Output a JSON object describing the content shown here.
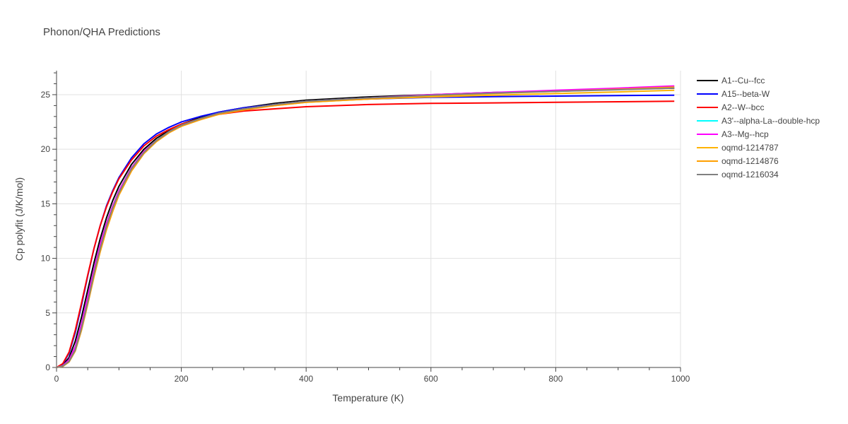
{
  "chart_data": {
    "type": "line",
    "title": "Phonon/QHA Predictions",
    "xlabel": "Temperature (K)",
    "ylabel": "Cp polyfit (J/K/mol)",
    "xlim": [
      0,
      1000
    ],
    "ylim": [
      0,
      27.2
    ],
    "xticks": [
      0,
      200,
      400,
      600,
      800,
      1000
    ],
    "yticks": [
      0,
      5,
      10,
      15,
      20,
      25
    ],
    "grid": true,
    "legend_position": "right",
    "x": [
      0,
      10,
      20,
      30,
      40,
      50,
      60,
      70,
      80,
      90,
      100,
      120,
      140,
      160,
      180,
      200,
      230,
      260,
      300,
      350,
      400,
      500,
      600,
      700,
      800,
      900,
      990
    ],
    "series": [
      {
        "name": "A1--Cu--fcc",
        "color": "#000000",
        "values": [
          0,
          0.2,
          0.9,
          2.4,
          4.6,
          7.1,
          9.6,
          11.8,
          13.7,
          15.3,
          16.6,
          18.6,
          20.0,
          21.0,
          21.7,
          22.3,
          22.9,
          23.4,
          23.8,
          24.2,
          24.5,
          24.8,
          25.0,
          25.2,
          25.3,
          25.5,
          25.6
        ]
      },
      {
        "name": "A15--beta-W",
        "color": "#0000ff",
        "values": [
          0,
          0.3,
          1.3,
          3.2,
          5.7,
          8.4,
          10.9,
          13.0,
          14.8,
          16.2,
          17.4,
          19.2,
          20.5,
          21.4,
          22.0,
          22.5,
          23.0,
          23.4,
          23.8,
          24.1,
          24.35,
          24.6,
          24.75,
          24.82,
          24.87,
          24.92,
          24.95
        ]
      },
      {
        "name": "A2--W--bcc",
        "color": "#ff0000",
        "values": [
          0,
          0.35,
          1.4,
          3.4,
          5.9,
          8.5,
          10.9,
          13.0,
          14.7,
          16.1,
          17.3,
          19.0,
          20.3,
          21.2,
          21.8,
          22.3,
          22.8,
          23.2,
          23.5,
          23.7,
          23.9,
          24.1,
          24.2,
          24.25,
          24.3,
          24.35,
          24.4
        ]
      },
      {
        "name": "A3'--alpha-La--double-hcp",
        "color": "#00ffff",
        "values": [
          0,
          0.15,
          0.7,
          1.9,
          4.0,
          6.5,
          9.0,
          11.3,
          13.2,
          14.8,
          16.2,
          18.3,
          19.8,
          20.8,
          21.6,
          22.2,
          22.8,
          23.3,
          23.7,
          24.1,
          24.4,
          24.7,
          24.95,
          25.15,
          25.35,
          25.55,
          25.75
        ]
      },
      {
        "name": "A3--Mg--hcp",
        "color": "#ff00ff",
        "values": [
          0,
          0.15,
          0.7,
          1.9,
          4.0,
          6.5,
          9.0,
          11.3,
          13.2,
          14.8,
          16.2,
          18.3,
          19.8,
          20.8,
          21.6,
          22.2,
          22.8,
          23.3,
          23.7,
          24.1,
          24.4,
          24.7,
          25.0,
          25.2,
          25.4,
          25.6,
          25.8
        ]
      },
      {
        "name": "oqmd-1214787",
        "color": "#ffb300",
        "values": [
          0,
          0.12,
          0.55,
          1.6,
          3.6,
          6.0,
          8.6,
          10.9,
          12.9,
          14.6,
          16.0,
          18.2,
          19.7,
          20.8,
          21.6,
          22.2,
          22.8,
          23.3,
          23.7,
          24.0,
          24.3,
          24.6,
          24.8,
          24.95,
          25.1,
          25.25,
          25.4
        ]
      },
      {
        "name": "oqmd-1214876",
        "color": "#ff9f00",
        "values": [
          0,
          0.1,
          0.5,
          1.5,
          3.4,
          5.8,
          8.3,
          10.6,
          12.6,
          14.3,
          15.8,
          18.0,
          19.6,
          20.7,
          21.5,
          22.1,
          22.7,
          23.2,
          23.6,
          24.0,
          24.3,
          24.6,
          24.9,
          25.1,
          25.3,
          25.5,
          25.7
        ]
      },
      {
        "name": "oqmd-1216034",
        "color": "#808080",
        "values": [
          0,
          0.12,
          0.55,
          1.6,
          3.6,
          6.0,
          8.6,
          10.9,
          12.9,
          14.6,
          16.0,
          18.2,
          19.7,
          20.8,
          21.6,
          22.2,
          22.8,
          23.3,
          23.7,
          24.1,
          24.4,
          24.7,
          24.95,
          25.15,
          25.3,
          25.45,
          25.6
        ]
      }
    ]
  }
}
